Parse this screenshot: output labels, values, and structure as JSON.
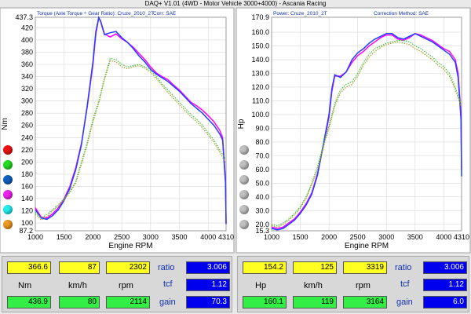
{
  "window_title": "DAQ+ V1.01 (4WD - Motor Vehicle 3000+4000) - Ascania Racing",
  "chart_data": [
    {
      "type": "line",
      "header_left": "Torque (Axle Torque ÷ Gear Ratio): Cruze_2010_2T",
      "header_right": "Corr: SAE",
      "xlabel": "Engine RPM",
      "ylabel": "Nm",
      "xlim": [
        1000,
        4310
      ],
      "ylim": [
        87.2,
        437.3
      ],
      "x_ticks": [
        "1000",
        "1500",
        "2000",
        "2500",
        "3000",
        "3500",
        "4000",
        "4310"
      ],
      "y_ticks": [
        "87.2",
        "100",
        "120",
        "140",
        "160",
        "180",
        "200",
        "220",
        "240",
        "260",
        "280",
        "300",
        "320",
        "340",
        "360",
        "380",
        "400",
        "420",
        "437.3"
      ],
      "grid": true,
      "series": [
        {
          "color": "#ff00ff",
          "style": "solid",
          "x": [
            1000,
            1100,
            1200,
            1300,
            1400,
            1500,
            1600,
            1700,
            1800,
            1900,
            2000,
            2050,
            2100,
            2130,
            2200,
            2300,
            2400,
            2500,
            2600,
            2700,
            2800,
            2900,
            3000,
            3100,
            3200,
            3300,
            3400,
            3500,
            3600,
            3700,
            3800,
            3900,
            4000,
            4100,
            4200,
            4250,
            4300,
            4310
          ],
          "y": [
            125,
            110,
            108,
            115,
            125,
            140,
            160,
            190,
            230,
            290,
            360,
            410,
            436,
            432,
            410,
            405,
            410,
            402,
            396,
            388,
            378,
            368,
            356,
            346,
            340,
            335,
            326,
            318,
            308,
            298,
            292,
            285,
            276,
            266,
            252,
            240,
            170,
            100
          ]
        },
        {
          "color": "#2040ff",
          "style": "solid",
          "x": [
            1000,
            1100,
            1200,
            1300,
            1400,
            1500,
            1600,
            1700,
            1800,
            1900,
            2000,
            2050,
            2100,
            2130,
            2200,
            2300,
            2400,
            2500,
            2600,
            2700,
            2800,
            2900,
            3000,
            3100,
            3200,
            3300,
            3400,
            3500,
            3600,
            3700,
            3800,
            3900,
            4000,
            4100,
            4200,
            4250,
            4300,
            4310
          ],
          "y": [
            122,
            108,
            106,
            112,
            122,
            137,
            157,
            187,
            228,
            292,
            364,
            414,
            437,
            431,
            409,
            412,
            414,
            404,
            396,
            386,
            374,
            364,
            352,
            344,
            338,
            332,
            324,
            316,
            306,
            296,
            288,
            280,
            270,
            260,
            246,
            236,
            165,
            98
          ]
        },
        {
          "color": "#40c040",
          "style": "dotted",
          "x": [
            1000,
            1100,
            1200,
            1300,
            1400,
            1500,
            1600,
            1700,
            1800,
            1900,
            2000,
            2100,
            2200,
            2300,
            2400,
            2500,
            2600,
            2700,
            2800,
            2900,
            3000,
            3100,
            3200,
            3300,
            3400,
            3500,
            3600,
            3700,
            3800,
            3900,
            4000,
            4100,
            4200,
            4300
          ],
          "y": [
            118,
            108,
            114,
            122,
            130,
            140,
            152,
            168,
            200,
            232,
            270,
            300,
            338,
            370,
            368,
            360,
            356,
            358,
            360,
            356,
            350,
            340,
            328,
            318,
            308,
            298,
            288,
            278,
            270,
            260,
            248,
            236,
            220,
            205
          ]
        },
        {
          "color": "#a0a020",
          "style": "dotted",
          "x": [
            1000,
            1100,
            1200,
            1300,
            1400,
            1500,
            1600,
            1700,
            1800,
            1900,
            2000,
            2100,
            2200,
            2300,
            2400,
            2500,
            2600,
            2700,
            2800,
            2900,
            3000,
            3100,
            3200,
            3300,
            3400,
            3500,
            3600,
            3700,
            3800,
            3900,
            4000,
            4100,
            4200,
            4300
          ],
          "y": [
            115,
            105,
            110,
            120,
            128,
            138,
            150,
            165,
            196,
            228,
            266,
            296,
            335,
            366,
            364,
            356,
            353,
            356,
            358,
            354,
            347,
            337,
            325,
            314,
            304,
            294,
            284,
            274,
            266,
            256,
            244,
            232,
            216,
            200
          ]
        }
      ]
    },
    {
      "type": "line",
      "header_left": "Power: Cruze_2010_2T",
      "header_right": "Correction Method: SAE",
      "xlabel": "Engine RPM",
      "ylabel": "Hp",
      "xlim": [
        1000,
        4310
      ],
      "ylim": [
        15.3,
        170.9
      ],
      "x_ticks": [
        "1000",
        "1500",
        "2000",
        "2500",
        "3000",
        "3500",
        "4000",
        "4310"
      ],
      "y_ticks": [
        "15.3",
        "20.0",
        "30.0",
        "40.0",
        "50.0",
        "60.0",
        "70.0",
        "80.0",
        "90.0",
        "100.0",
        "110.0",
        "120.0",
        "130.0",
        "140.0",
        "150.0",
        "160.0",
        "170.9"
      ],
      "grid": true,
      "series": [
        {
          "color": "#ff00ff",
          "style": "solid",
          "x": [
            1000,
            1100,
            1200,
            1300,
            1400,
            1500,
            1600,
            1700,
            1800,
            1900,
            2000,
            2050,
            2100,
            2200,
            2300,
            2400,
            2500,
            2600,
            2700,
            2800,
            2900,
            3000,
            3100,
            3200,
            3300,
            3400,
            3500,
            3600,
            3700,
            3800,
            3900,
            4000,
            4100,
            4200,
            4250,
            4300,
            4310
          ],
          "y": [
            18,
            17,
            18,
            21,
            24,
            29,
            35,
            43,
            57,
            77,
            98,
            117,
            128,
            128,
            131,
            138,
            143,
            146,
            150,
            153,
            156,
            158,
            158,
            155,
            154,
            156,
            159,
            158,
            156,
            154,
            151,
            148,
            146,
            140,
            130,
            100,
            60
          ]
        },
        {
          "color": "#2040ff",
          "style": "solid",
          "x": [
            1000,
            1100,
            1200,
            1300,
            1400,
            1500,
            1600,
            1700,
            1800,
            1900,
            2000,
            2050,
            2100,
            2200,
            2300,
            2400,
            2500,
            2600,
            2700,
            2800,
            2900,
            3000,
            3100,
            3200,
            3300,
            3400,
            3500,
            3600,
            3700,
            3800,
            3900,
            4000,
            4100,
            4200,
            4250,
            4300,
            4310
          ],
          "y": [
            17,
            16,
            17,
            20,
            23,
            28,
            34,
            42,
            56,
            78,
            100,
            119,
            129,
            127,
            131,
            140,
            145,
            148,
            152,
            155,
            157,
            159,
            159,
            156,
            155,
            157,
            159,
            157,
            155,
            153,
            150,
            147,
            144,
            138,
            127,
            96,
            55
          ]
        },
        {
          "color": "#40c040",
          "style": "dotted",
          "x": [
            1000,
            1100,
            1200,
            1300,
            1400,
            1500,
            1600,
            1700,
            1800,
            1900,
            2000,
            2100,
            2200,
            2300,
            2400,
            2500,
            2600,
            2700,
            2800,
            2900,
            3000,
            3100,
            3200,
            3300,
            3400,
            3500,
            3600,
            3700,
            3800,
            3900,
            4000,
            4100,
            4200,
            4300
          ],
          "y": [
            20,
            19,
            21,
            24,
            28,
            33,
            40,
            50,
            62,
            78,
            92,
            108,
            118,
            122,
            124,
            130,
            138,
            144,
            148,
            150,
            152,
            153,
            154,
            154,
            153,
            150,
            148,
            145,
            142,
            138,
            135,
            130,
            120,
            108
          ]
        },
        {
          "color": "#a0a020",
          "style": "dotted",
          "x": [
            1000,
            1100,
            1200,
            1300,
            1400,
            1500,
            1600,
            1700,
            1800,
            1900,
            2000,
            2100,
            2200,
            2300,
            2400,
            2500,
            2600,
            2700,
            2800,
            2900,
            3000,
            3100,
            3200,
            3300,
            3400,
            3500,
            3600,
            3700,
            3800,
            3900,
            4000,
            4100,
            4200,
            4300
          ],
          "y": [
            19,
            18,
            20,
            23,
            27,
            32,
            39,
            49,
            60,
            76,
            90,
            106,
            116,
            120,
            122,
            128,
            136,
            142,
            146,
            149,
            151,
            152,
            153,
            152,
            151,
            148,
            146,
            143,
            140,
            136,
            133,
            128,
            118,
            106
          ]
        }
      ]
    }
  ],
  "left_dots": [
    "#ee1111",
    "#22dd22",
    "#1060c0",
    "#ee22ee",
    "#22eeee",
    "#ee9922"
  ],
  "right_dots": [
    "#c0c0c0",
    "#c0c0c0",
    "#c0c0c0",
    "#c0c0c0",
    "#c0c0c0",
    "#c0c0c0"
  ],
  "left_panel": {
    "top_values": [
      "366.6",
      "87",
      "2302"
    ],
    "units": [
      "Nm",
      "km/h",
      "rpm"
    ],
    "bottom_values": [
      "436.9",
      "80",
      "2114"
    ],
    "ratio_label": "ratio",
    "ratio_value": "3.006",
    "tcf_label": "tcf",
    "tcf_value": "1.12",
    "gain_label": "gain",
    "gain_value": "70.3"
  },
  "right_panel": {
    "top_values": [
      "154.2",
      "125",
      "3319"
    ],
    "units": [
      "Hp",
      "km/h",
      "rpm"
    ],
    "bottom_values": [
      "160.1",
      "119",
      "3164"
    ],
    "ratio_label": "ratio",
    "ratio_value": "3.006",
    "tcf_label": "tcf",
    "tcf_value": "1.12",
    "gain_label": "gain",
    "gain_value": "6.0"
  }
}
